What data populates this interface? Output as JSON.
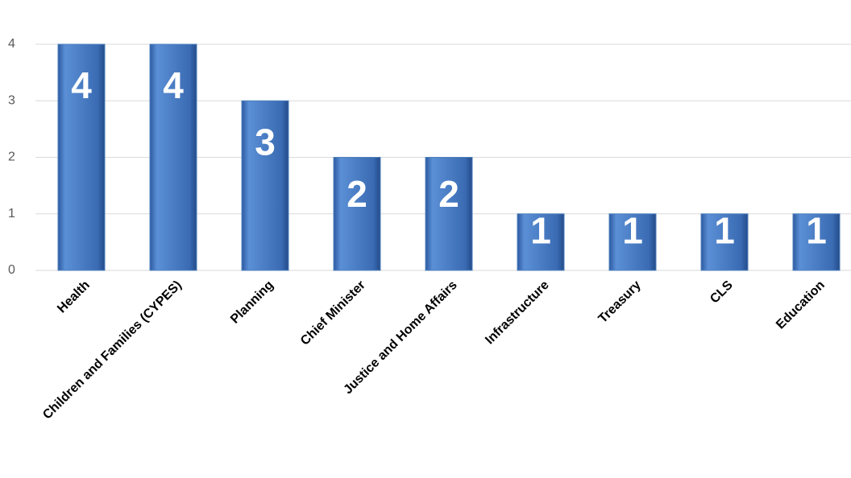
{
  "chart_data": {
    "type": "bar",
    "categories": [
      "Health",
      "Children and Families (CYPES)",
      "Planning",
      "Chief Minister",
      "Justice and Home Affairs",
      "Infrastructure",
      "Treasury",
      "CLS",
      "Education"
    ],
    "values": [
      4,
      4,
      3,
      2,
      2,
      1,
      1,
      1,
      1
    ],
    "color": "#4f81bd",
    "ylim": [
      0,
      4
    ],
    "yticks": [
      0,
      1,
      2,
      3,
      4
    ],
    "grid": true
  }
}
